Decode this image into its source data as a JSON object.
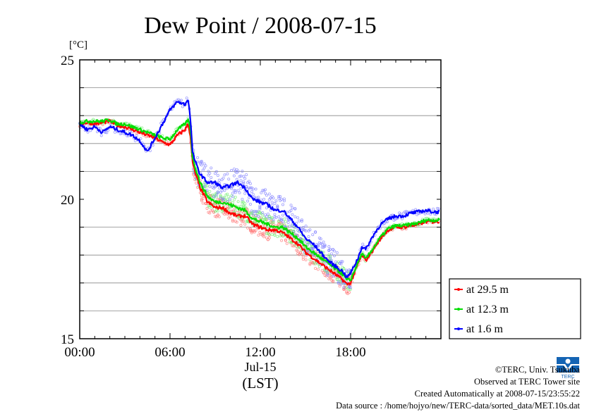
{
  "chart_data": {
    "type": "line",
    "title": "Dew Point / 2008-07-15",
    "unit_label": "[°C]",
    "xlabel_date": "Jul-15",
    "xlabel": "(LST)",
    "ylim": [
      15,
      25
    ],
    "yticks": [
      15,
      20,
      25
    ],
    "ygrid": [
      16,
      17,
      18,
      19,
      21,
      22,
      23,
      24
    ],
    "xlim_hours": [
      0,
      24
    ],
    "xticks": [
      {
        "hour": 0,
        "label": "00:00"
      },
      {
        "hour": 6,
        "label": "06:00"
      },
      {
        "hour": 12,
        "label": "12:00"
      },
      {
        "hour": 18,
        "label": "18:00"
      }
    ],
    "grid": true,
    "legend_position": "bottom-right outside",
    "series": [
      {
        "name": "at 29.5 m",
        "color": "#ff0000",
        "x": [
          0,
          0.5,
          1,
          1.5,
          2,
          2.5,
          3,
          3.5,
          4,
          4.5,
          5,
          5.5,
          6,
          6.5,
          7,
          7.2,
          7.35,
          7.5,
          7.7,
          8,
          8.5,
          9,
          9.5,
          10,
          10.5,
          11,
          11.5,
          12,
          12.5,
          13,
          13.5,
          14,
          14.5,
          15,
          15.5,
          16,
          16.5,
          17,
          17.5,
          17.75,
          18,
          18.5,
          18.75,
          19,
          19.5,
          20,
          20.5,
          21,
          21.5,
          22,
          22.5,
          23,
          23.5
        ],
        "y": [
          22.7,
          22.75,
          22.7,
          22.75,
          22.8,
          22.65,
          22.6,
          22.5,
          22.4,
          22.3,
          22.2,
          22.05,
          21.95,
          22.3,
          22.5,
          22.7,
          22.3,
          21.3,
          20.9,
          20.4,
          19.9,
          19.7,
          19.7,
          19.5,
          19.4,
          19.4,
          19.1,
          19.0,
          18.9,
          18.9,
          18.8,
          18.6,
          18.4,
          18.1,
          17.9,
          17.7,
          17.5,
          17.3,
          17.1,
          16.95,
          17.0,
          17.7,
          18.0,
          17.8,
          18.2,
          18.6,
          18.9,
          19.0,
          19.0,
          19.05,
          19.1,
          19.2,
          19.2
        ]
      },
      {
        "name": "at 12.3 m",
        "color": "#00dd00",
        "x": [
          0,
          0.5,
          1,
          1.5,
          2,
          2.5,
          3,
          3.5,
          4,
          4.5,
          5,
          5.5,
          6,
          6.5,
          7,
          7.2,
          7.35,
          7.5,
          7.7,
          8,
          8.5,
          9,
          9.5,
          10,
          10.5,
          11,
          11.5,
          12,
          12.5,
          13,
          13.5,
          14,
          14.5,
          15,
          15.5,
          16,
          16.5,
          17,
          17.5,
          17.75,
          18,
          18.5,
          18.75,
          19,
          19.5,
          20,
          20.5,
          21,
          21.5,
          22,
          22.5,
          23,
          23.5
        ],
        "y": [
          22.75,
          22.8,
          22.8,
          22.8,
          22.85,
          22.7,
          22.7,
          22.6,
          22.5,
          22.4,
          22.3,
          22.2,
          22.15,
          22.5,
          22.7,
          22.85,
          22.55,
          21.5,
          21.1,
          20.6,
          20.1,
          19.9,
          19.9,
          19.8,
          19.7,
          19.6,
          19.3,
          19.2,
          19.1,
          19.0,
          19.0,
          18.8,
          18.6,
          18.3,
          18.1,
          17.9,
          17.7,
          17.5,
          17.3,
          17.1,
          17.1,
          17.75,
          18.05,
          17.85,
          18.25,
          18.65,
          18.95,
          19.05,
          19.05,
          19.1,
          19.15,
          19.25,
          19.25
        ]
      },
      {
        "name": "at 1.6 m",
        "color": "#0000ff",
        "x": [
          0,
          0.5,
          1,
          1.5,
          2,
          2.5,
          3,
          3.5,
          4,
          4.5,
          5,
          5.5,
          6,
          6.5,
          7,
          7.2,
          7.35,
          7.5,
          7.7,
          8,
          8.5,
          9,
          9.5,
          10,
          10.5,
          11,
          11.5,
          12,
          12.5,
          13,
          13.5,
          14,
          14.5,
          15,
          15.5,
          16,
          16.5,
          17,
          17.5,
          17.75,
          18,
          18.5,
          18.75,
          19,
          19.5,
          20,
          20.5,
          21,
          21.5,
          22,
          22.5,
          23,
          23.5
        ],
        "y": [
          22.7,
          22.5,
          22.6,
          22.4,
          22.6,
          22.5,
          22.4,
          22.3,
          22.1,
          21.7,
          22.2,
          22.7,
          23.2,
          23.5,
          23.4,
          23.6,
          22.9,
          21.7,
          21.3,
          20.9,
          20.6,
          20.6,
          20.4,
          20.5,
          20.6,
          20.4,
          20.0,
          19.9,
          19.8,
          19.6,
          19.6,
          19.3,
          19.0,
          18.6,
          18.4,
          18.1,
          17.8,
          17.6,
          17.4,
          17.2,
          17.35,
          17.9,
          18.3,
          18.2,
          18.7,
          19.1,
          19.3,
          19.4,
          19.4,
          19.5,
          19.55,
          19.6,
          19.55
        ]
      }
    ]
  },
  "footer": {
    "copyright": "©TERC, Univ. Tsukuba",
    "observed": "Observed at TERC Tower site",
    "created": "Created Automatically at 2008-07-15/23:55:22",
    "source": "Data source : /home/hojyo/new/TERC-data/sorted_data/MET.10s.dat",
    "logo_text": "TERC"
  }
}
